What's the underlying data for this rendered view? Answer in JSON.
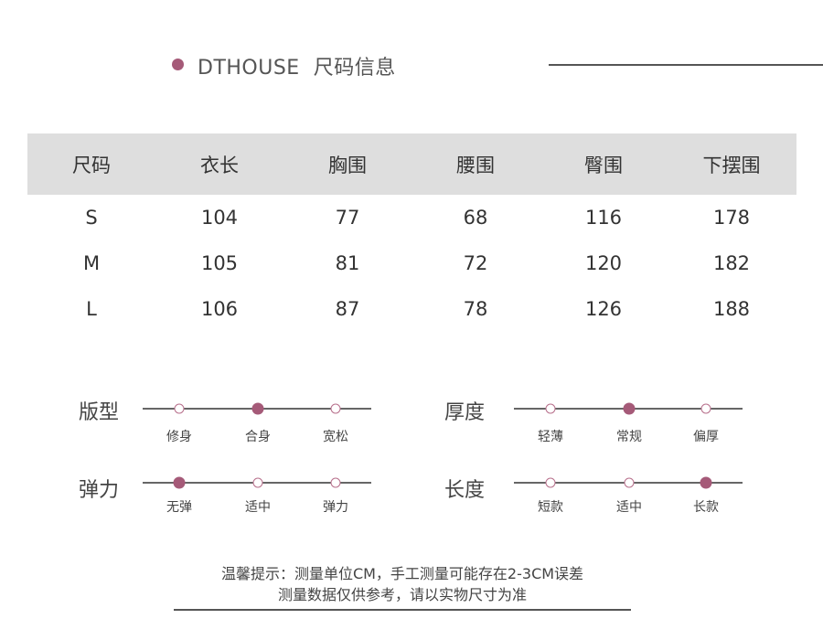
{
  "header": {
    "brand": "DTHOUSE",
    "title": "尺码信息"
  },
  "table": {
    "columns": [
      "尺码",
      "衣长",
      "胸围",
      "腰围",
      "臀围",
      "下摆围"
    ],
    "rows": [
      [
        "S",
        "104",
        "77",
        "68",
        "116",
        "178"
      ],
      [
        "M",
        "105",
        "81",
        "72",
        "120",
        "182"
      ],
      [
        "L",
        "106",
        "87",
        "78",
        "126",
        "188"
      ]
    ]
  },
  "params": {
    "fit": {
      "label": "版型",
      "options": [
        "修身",
        "合身",
        "宽松"
      ],
      "selected": 1
    },
    "thickness": {
      "label": "厚度",
      "options": [
        "轻薄",
        "常规",
        "偏厚"
      ],
      "selected": 1
    },
    "elasticity": {
      "label": "弹力",
      "options": [
        "无弹",
        "适中",
        "弹力"
      ],
      "selected": 0
    },
    "length": {
      "label": "长度",
      "options": [
        "短款",
        "适中",
        "长款"
      ],
      "selected": 2
    }
  },
  "note": {
    "line1": "温馨提示：测量单位CM，手工测量可能存在2-3CM误差",
    "line2": "测量数据仅供参考，请以实物尺寸为准"
  },
  "colors": {
    "accent": "#a55a78",
    "header_bg": "#dedede"
  }
}
